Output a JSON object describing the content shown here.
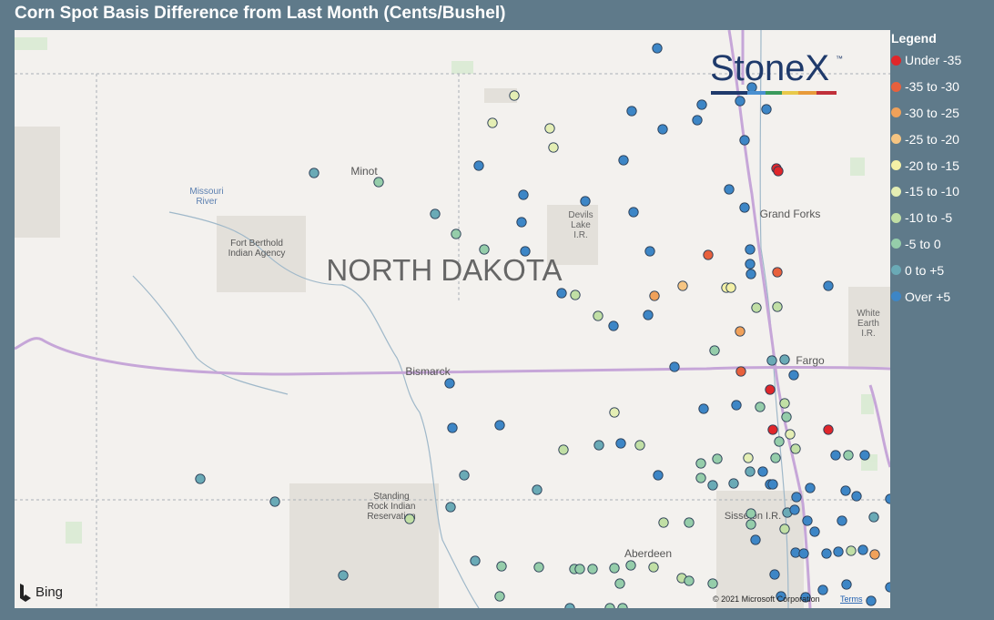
{
  "header": {
    "title": "Corn Spot Basis Difference from Last Month (Cents/Bushel)"
  },
  "legend": {
    "title": "Legend",
    "items": [
      {
        "label": "Under -35",
        "color": "#e0262a"
      },
      {
        "label": "-35 to -30",
        "color": "#e8603c"
      },
      {
        "label": "-30 to -25",
        "color": "#f0a15a"
      },
      {
        "label": "-25 to -20",
        "color": "#f6c582"
      },
      {
        "label": "-20 to -15",
        "color": "#f3f0a6"
      },
      {
        "label": "-15 to -10",
        "color": "#e4eeb4"
      },
      {
        "label": "-10 to -5",
        "color": "#c1dfa5"
      },
      {
        "label": "-5 to 0",
        "color": "#95cdaa"
      },
      {
        "label": "0 to +5",
        "color": "#6aaab6"
      },
      {
        "label": "Over +5",
        "color": "#3d86c6"
      }
    ]
  },
  "map": {
    "labels": [
      {
        "lines": [
          "Minot"
        ]
      },
      {
        "lines": [
          "Missouri",
          "River"
        ]
      },
      {
        "lines": [
          "Fort Berthold",
          "Indian Agency"
        ]
      },
      {
        "lines": [
          "NORTH DAKOTA"
        ]
      },
      {
        "lines": [
          "Devils",
          "Lake",
          "I.R."
        ]
      },
      {
        "lines": [
          "Grand Forks"
        ]
      },
      {
        "lines": [
          "White",
          "Earth",
          "I.R."
        ]
      },
      {
        "lines": [
          "Fargo"
        ]
      },
      {
        "lines": [
          "Bismarck"
        ]
      },
      {
        "lines": [
          "Standing",
          "Rock Indian",
          "Reservation"
        ]
      },
      {
        "lines": [
          "Sisseton I.R."
        ]
      },
      {
        "lines": [
          "Aberdeen"
        ]
      }
    ],
    "logo": "StoneX",
    "logo_mark": "™",
    "provider": "Bing",
    "copyright": "© 2021 Microsoft Corporation",
    "terms": "Terms"
  }
}
